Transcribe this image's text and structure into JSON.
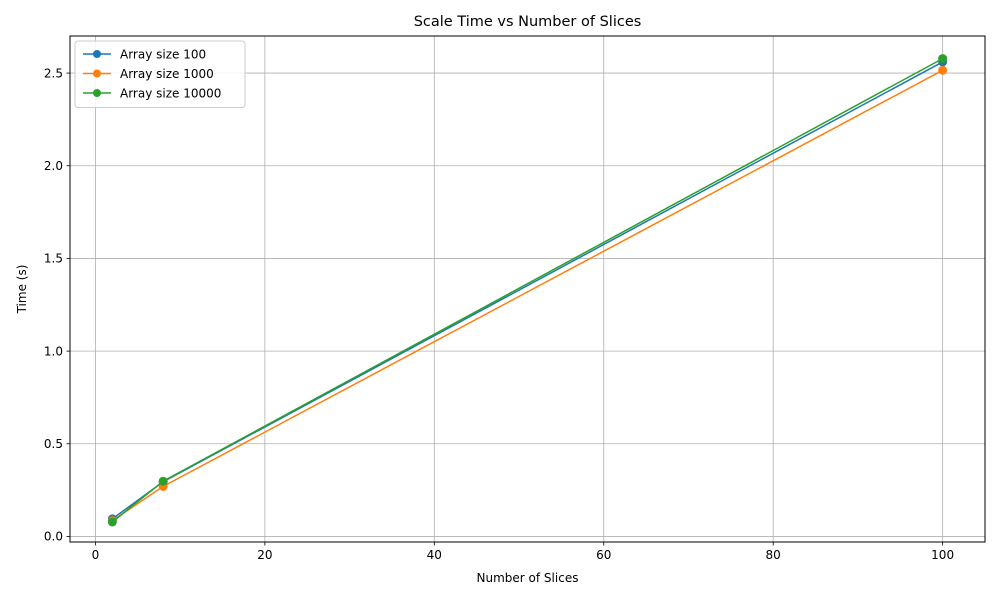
{
  "chart_data": {
    "type": "line",
    "title": "Scale Time vs Number of Slices",
    "xlabel": "Number of Slices",
    "ylabel": "Time (s)",
    "xlim": [
      -3,
      105
    ],
    "ylim": [
      -0.03,
      2.7
    ],
    "x_ticks": [
      0,
      20,
      40,
      60,
      80,
      100
    ],
    "x_tick_labels": [
      "0",
      "20",
      "40",
      "60",
      "80",
      "100"
    ],
    "y_ticks": [
      0.0,
      0.5,
      1.0,
      1.5,
      2.0,
      2.5
    ],
    "y_tick_labels": [
      "0.0",
      "0.5",
      "1.0",
      "1.5",
      "2.0",
      "2.5"
    ],
    "grid": true,
    "legend_position": "top-left",
    "series": [
      {
        "name": "Array size 100",
        "color": "#1f77b4",
        "x": [
          2,
          8,
          100
        ],
        "y": [
          0.095,
          0.295,
          2.56
        ]
      },
      {
        "name": "Array size 1000",
        "color": "#ff7f0e",
        "x": [
          2,
          8,
          100
        ],
        "y": [
          0.085,
          0.27,
          2.515
        ]
      },
      {
        "name": "Array size 10000",
        "color": "#2ca02c",
        "x": [
          2,
          8,
          100
        ],
        "y": [
          0.078,
          0.298,
          2.578
        ]
      }
    ]
  }
}
